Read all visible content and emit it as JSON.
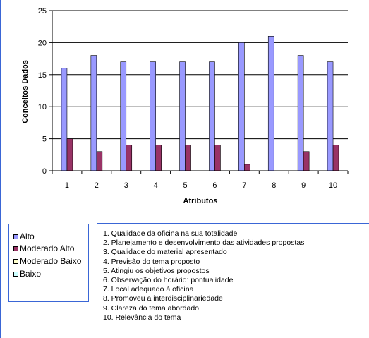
{
  "chart_data": {
    "type": "bar",
    "categories": [
      "1",
      "2",
      "3",
      "4",
      "5",
      "6",
      "7",
      "8",
      "9",
      "10"
    ],
    "series": [
      {
        "name": "Alto",
        "color": "#9999ff",
        "values": [
          16,
          18,
          17,
          17,
          17,
          17,
          20,
          21,
          18,
          17
        ]
      },
      {
        "name": "Moderado Alto",
        "color": "#993366",
        "values": [
          5,
          3,
          4,
          4,
          4,
          4,
          1,
          0,
          3,
          4
        ]
      },
      {
        "name": "Moderado Baixo",
        "color": "#ffffcc",
        "values": [
          0,
          0,
          0,
          0,
          0,
          0,
          0,
          0,
          0,
          0
        ]
      },
      {
        "name": "Baixo",
        "color": "#ccffff",
        "values": [
          0,
          0,
          0,
          0,
          0,
          0,
          0,
          0,
          0,
          0
        ]
      }
    ],
    "title": "",
    "xlabel": "Atributos",
    "ylabel": "Conceitos Dados",
    "ylim": [
      0,
      25
    ],
    "yticks": [
      0,
      5,
      10,
      15,
      20,
      25
    ],
    "grid": true,
    "legend": "bottom-left"
  },
  "notes": [
    "1. Qualidade da oficina na sua totalidade",
    "2. Planejamento e desenvolvimento das atividades propostas",
    "3. Qualidade do material apresentado",
    "4. Previsão do tema proposto",
    "5. Atingiu os objetivos propostos",
    "6. Observação do horário: pontualidade",
    "7. Local adequado à oficina",
    "8. Promoveu a interdisciplinariedade",
    "9. Clareza do tema abordado",
    "10. Relevância do tema"
  ],
  "colors": {
    "border": "#3a66d6",
    "grid": "#000000"
  }
}
